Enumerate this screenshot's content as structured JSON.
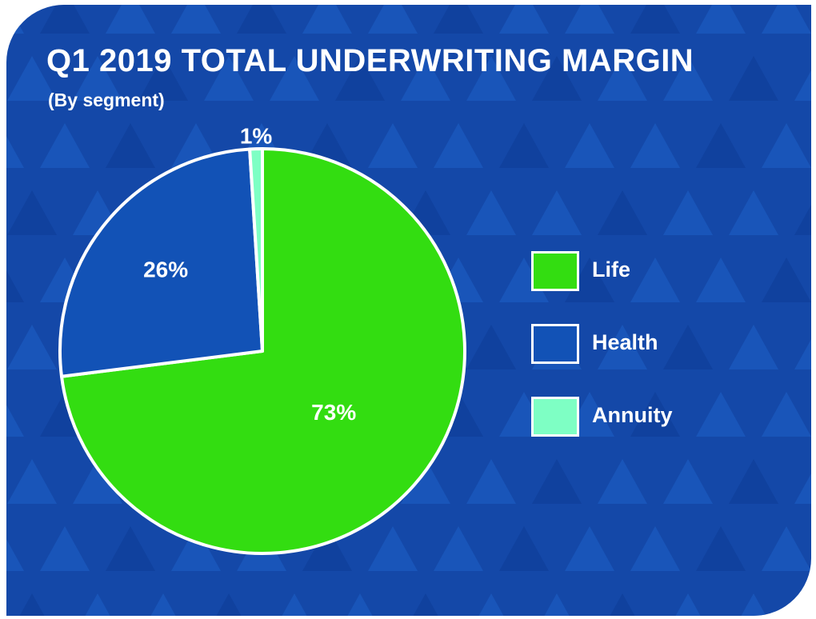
{
  "chart_data": {
    "type": "pie",
    "title": "Q1 2019 TOTAL UNDERWRITING MARGIN",
    "subtitle": "(By segment)",
    "categories": [
      "Life",
      "Health",
      "Annuity"
    ],
    "values": [
      73,
      26,
      1
    ],
    "labels": [
      "73%",
      "26%",
      "1%"
    ],
    "colors": [
      "#33dd11",
      "#1252b6",
      "#7effc4"
    ],
    "legend_position": "right",
    "start_angle_deg": 0,
    "direction": "clockwise"
  },
  "colors": {
    "background": "#1448a8",
    "pattern_light": "#1c5fc4",
    "pattern_dark": "#0d3c96",
    "outline": "#ffffff"
  }
}
